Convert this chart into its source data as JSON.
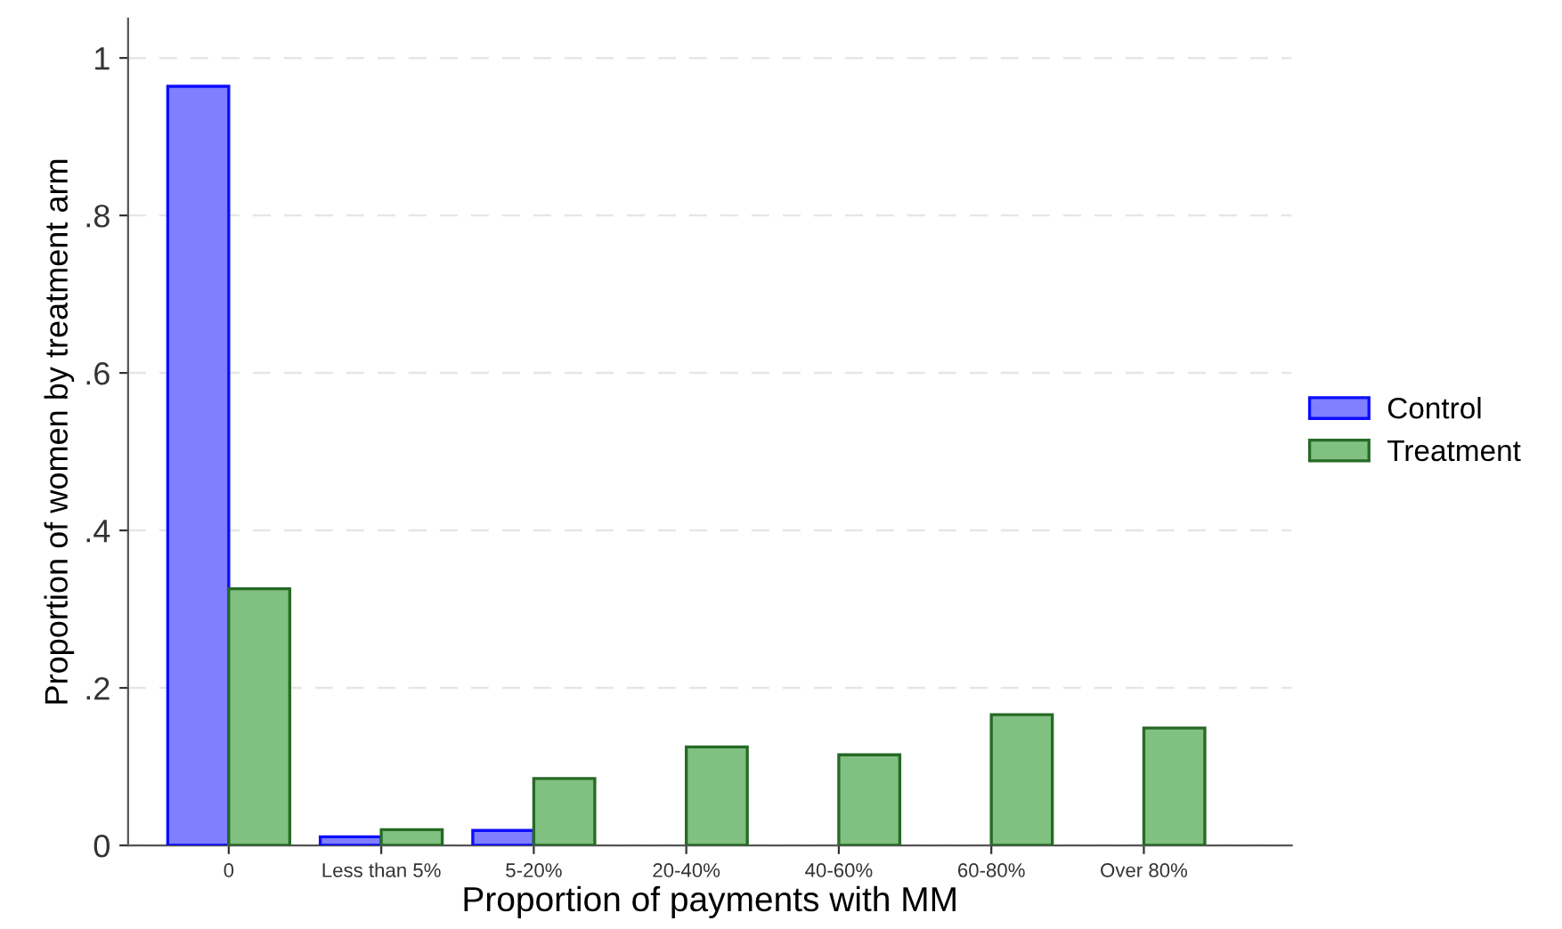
{
  "chart_data": {
    "type": "bar",
    "xlabel": "Proportion of payments with MM",
    "ylabel": "Proportion of women by treatment arm",
    "categories": [
      "0",
      "Less than 5%",
      "5-20%",
      "20-40%",
      "40-60%",
      "60-80%",
      "Over 80%"
    ],
    "series": [
      {
        "name": "Control",
        "color": "#7f7fff",
        "values": [
          0.964,
          0.011,
          0.019,
          null,
          null,
          null,
          null
        ]
      },
      {
        "name": "Treatment",
        "color": "#80c080",
        "values": [
          0.326,
          0.02,
          0.085,
          0.125,
          0.115,
          0.166,
          0.149
        ]
      }
    ],
    "ylim": [
      0,
      1.05
    ],
    "yticks": [
      0,
      {
        "value": 0.2,
        "label": ".2"
      },
      {
        "value": 0.4,
        "label": ".4"
      },
      {
        "value": 0.6,
        "label": ".6"
      },
      {
        "value": 0.8,
        "label": ".8"
      },
      1
    ],
    "grid": "y",
    "legend": "right"
  }
}
